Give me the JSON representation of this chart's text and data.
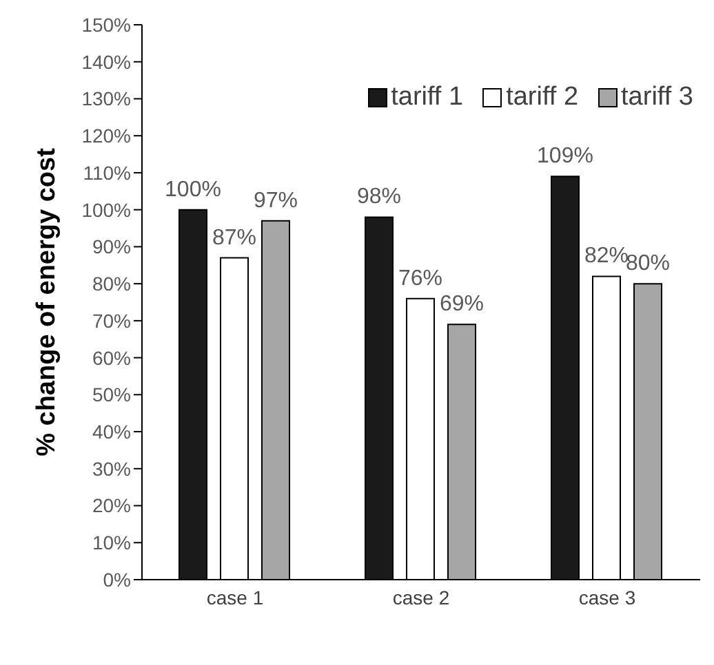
{
  "chart_data": {
    "type": "bar",
    "ylabel": "% change of energy cost",
    "categories": [
      "case 1",
      "case 2",
      "case 3"
    ],
    "series": [
      {
        "name": "tariff 1",
        "color": "#1a1a1a",
        "values": [
          100,
          98,
          109
        ],
        "value_labels": [
          "100%",
          "98%",
          "109%"
        ]
      },
      {
        "name": "tariff 2",
        "color": "#ffffff",
        "values": [
          87,
          76,
          82
        ],
        "value_labels": [
          "87%",
          "76%",
          "82%"
        ]
      },
      {
        "name": "tariff 3",
        "color": "#a6a6a6",
        "values": [
          97,
          69,
          80
        ],
        "value_labels": [
          "97%",
          "69%",
          "80%"
        ]
      }
    ],
    "ylim": [
      0,
      150
    ],
    "yticks": [
      {
        "value": 0,
        "label": "0%"
      },
      {
        "value": 10,
        "label": "10%"
      },
      {
        "value": 20,
        "label": "20%"
      },
      {
        "value": 30,
        "label": "30%"
      },
      {
        "value": 40,
        "label": "40%"
      },
      {
        "value": 50,
        "label": "50%"
      },
      {
        "value": 60,
        "label": "60%"
      },
      {
        "value": 70,
        "label": "70%"
      },
      {
        "value": 80,
        "label": "80%"
      },
      {
        "value": 90,
        "label": "90%"
      },
      {
        "value": 100,
        "label": "100%"
      },
      {
        "value": 110,
        "label": "110%"
      },
      {
        "value": 120,
        "label": "120%"
      },
      {
        "value": 130,
        "label": "130%"
      },
      {
        "value": 140,
        "label": "140%"
      },
      {
        "value": 150,
        "label": "150%"
      }
    ],
    "grid": false,
    "legend": "top right"
  }
}
